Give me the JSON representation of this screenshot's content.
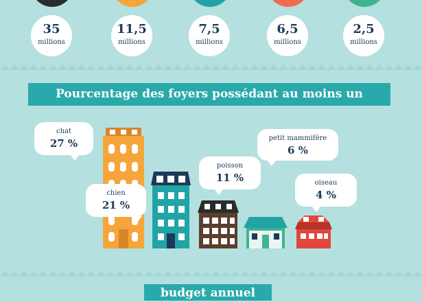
{
  "colors": {
    "background": "#b4e0e0",
    "banner": "#2aa9ab",
    "text_dark": "#1b3a57",
    "circle_black": "#2b2b2b",
    "circle_orange": "#f5a53a",
    "circle_teal": "#22a3a5",
    "circle_coral": "#ef6a4e",
    "circle_green": "#3cb58f"
  },
  "stats": [
    {
      "value": "35",
      "unit": "millions"
    },
    {
      "value": "11,5",
      "unit": "millions"
    },
    {
      "value": "7,5",
      "unit": "millions"
    },
    {
      "value": "6,5",
      "unit": "millions"
    },
    {
      "value": "2,5",
      "unit": "millions"
    }
  ],
  "banner_title": "Pourcentage des foyers possédant au moins un",
  "bubbles": {
    "chat": {
      "label": "chat",
      "value": "27 %"
    },
    "chien": {
      "label": "chien",
      "value": "21 %"
    },
    "poisson": {
      "label": "poisson",
      "value": "11 %"
    },
    "petit_mammifere": {
      "label": "petit mammifère",
      "value": "6 %"
    },
    "oiseau": {
      "label": "oiseau",
      "value": "4 %"
    }
  },
  "buildings": [
    {
      "name": "orange-tower",
      "color": "#f5a53a"
    },
    {
      "name": "teal-building",
      "color": "#22a3a5"
    },
    {
      "name": "brown-house",
      "color": "#5a3e2e"
    },
    {
      "name": "green-house",
      "color": "#3cb58f"
    },
    {
      "name": "red-house",
      "color": "#e0463a"
    }
  ],
  "footer_title": "budget annuel"
}
